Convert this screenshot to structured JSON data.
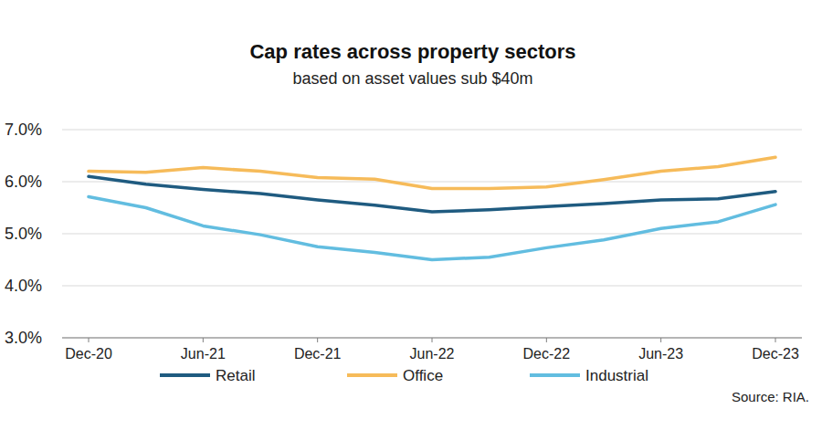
{
  "chart_data": {
    "type": "line",
    "title": "Cap rates across property sectors",
    "subtitle": "based on asset values sub $40m",
    "categories": [
      "Dec-20",
      null,
      "Jun-21",
      null,
      "Dec-21",
      null,
      "Jun-22",
      null,
      "Dec-22",
      null,
      "Jun-23",
      null,
      "Dec-23"
    ],
    "series": [
      {
        "name": "Retail",
        "color": "#1f5b80",
        "values": [
          6.1,
          5.95,
          5.85,
          5.77,
          5.65,
          5.55,
          5.42,
          5.46,
          5.52,
          5.58,
          5.65,
          5.67,
          5.81
        ]
      },
      {
        "name": "Office",
        "color": "#f6bb5a",
        "values": [
          6.2,
          6.18,
          6.27,
          6.2,
          6.08,
          6.05,
          5.87,
          5.87,
          5.9,
          6.04,
          6.2,
          6.29,
          6.47
        ]
      },
      {
        "name": "Industrial",
        "color": "#62bde0",
        "values": [
          5.71,
          5.5,
          5.15,
          4.98,
          4.75,
          4.64,
          4.5,
          4.55,
          4.73,
          4.88,
          5.1,
          5.23,
          5.56
        ]
      }
    ],
    "ylim": [
      3,
      7
    ],
    "yticks": [
      {
        "value": 3,
        "label": "3.0%"
      },
      {
        "value": 4,
        "label": "4.0%"
      },
      {
        "value": 5,
        "label": "5.0%"
      },
      {
        "value": 6,
        "label": "6.0%"
      },
      {
        "value": 7,
        "label": "7.0%"
      }
    ],
    "grid": true,
    "legend": "bottom",
    "annotations": [
      "Source: RIA."
    ]
  }
}
